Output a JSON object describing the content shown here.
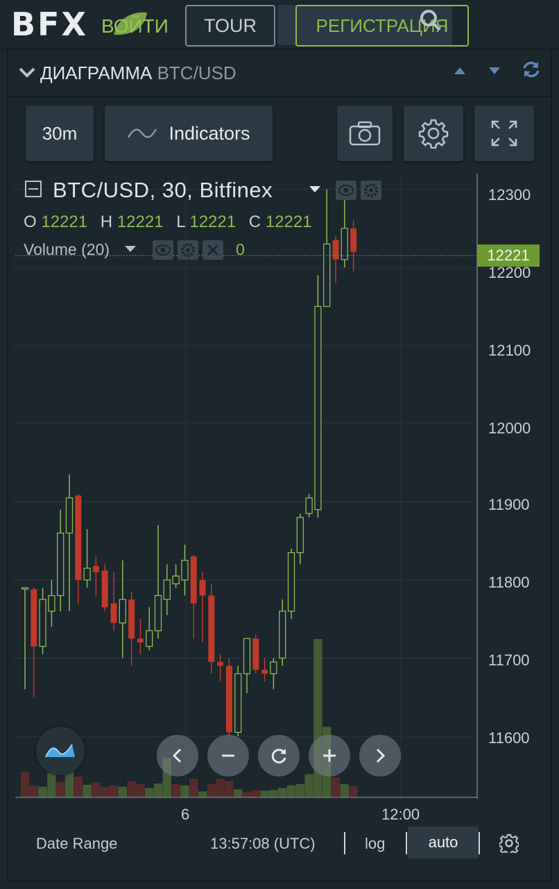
{
  "header": {
    "logo": "BFX",
    "login_label": "ВОЙТИ",
    "tour_label": "TOUR",
    "register_label": "РЕГИСТРАЦИЯ"
  },
  "panel": {
    "title": "ДИАГРАММА",
    "pair": "BTC/USD"
  },
  "toolbar": {
    "interval": "30m",
    "indicators_label": "Indicators"
  },
  "legend": {
    "title": "BTC/USD, 30, Bitfinex",
    "o_label": "O",
    "o_value": "12221",
    "h_label": "H",
    "h_value": "12221",
    "l_label": "L",
    "l_value": "12221",
    "c_label": "C",
    "c_value": "12221",
    "volume_label": "Volume (20)",
    "volume_value": "0"
  },
  "price_axis": {
    "labels": [
      "12300",
      "12200",
      "12100",
      "12000",
      "11900",
      "11800",
      "11700",
      "11600"
    ],
    "current_price": "12221"
  },
  "time_axis": {
    "labels": [
      "6",
      "12:00"
    ]
  },
  "footer": {
    "date_range_label": "Date Range",
    "clock": "13:57:08 (UTC)",
    "log_label": "log",
    "auto_label": "auto"
  },
  "colors": {
    "up": "#8dbc52",
    "down": "#c0392b",
    "background": "#1b262d",
    "price_tag": "#6b9b2f"
  },
  "chart_data": {
    "type": "candlestick",
    "ylim": [
      11520,
      12320
    ],
    "candles": [
      {
        "o": 11790,
        "h": 11790,
        "l": 11660,
        "c": 11790
      },
      {
        "o": 11788,
        "h": 11790,
        "l": 11650,
        "c": 11715
      },
      {
        "o": 11715,
        "h": 11790,
        "l": 11705,
        "c": 11775
      },
      {
        "o": 11760,
        "h": 11800,
        "l": 11740,
        "c": 11780
      },
      {
        "o": 11780,
        "h": 11890,
        "l": 11760,
        "c": 11860
      },
      {
        "o": 11860,
        "h": 11935,
        "l": 11760,
        "c": 11905
      },
      {
        "o": 11908,
        "h": 11910,
        "l": 11770,
        "c": 11800
      },
      {
        "o": 11800,
        "h": 11865,
        "l": 11790,
        "c": 11815
      },
      {
        "o": 11818,
        "h": 11830,
        "l": 11780,
        "c": 11810
      },
      {
        "o": 11812,
        "h": 11820,
        "l": 11760,
        "c": 11765
      },
      {
        "o": 11770,
        "h": 11810,
        "l": 11735,
        "c": 11745
      },
      {
        "o": 11745,
        "h": 11825,
        "l": 11700,
        "c": 11775
      },
      {
        "o": 11775,
        "h": 11785,
        "l": 11690,
        "c": 11725
      },
      {
        "o": 11725,
        "h": 11750,
        "l": 11705,
        "c": 11720
      },
      {
        "o": 11715,
        "h": 11765,
        "l": 11710,
        "c": 11735
      },
      {
        "o": 11735,
        "h": 11870,
        "l": 11725,
        "c": 11780
      },
      {
        "o": 11775,
        "h": 11820,
        "l": 11755,
        "c": 11800
      },
      {
        "o": 11795,
        "h": 11820,
        "l": 11790,
        "c": 11805
      },
      {
        "o": 11800,
        "h": 11845,
        "l": 11780,
        "c": 11825
      },
      {
        "o": 11830,
        "h": 11832,
        "l": 11725,
        "c": 11770
      },
      {
        "o": 11800,
        "h": 11810,
        "l": 11720,
        "c": 11780
      },
      {
        "o": 11780,
        "h": 11795,
        "l": 11680,
        "c": 11695
      },
      {
        "o": 11695,
        "h": 11705,
        "l": 11670,
        "c": 11690
      },
      {
        "o": 11690,
        "h": 11700,
        "l": 11600,
        "c": 11605
      },
      {
        "o": 11605,
        "h": 11690,
        "l": 11600,
        "c": 11680
      },
      {
        "o": 11680,
        "h": 11725,
        "l": 11655,
        "c": 11725
      },
      {
        "o": 11725,
        "h": 11730,
        "l": 11680,
        "c": 11685
      },
      {
        "o": 11685,
        "h": 11700,
        "l": 11670,
        "c": 11680
      },
      {
        "o": 11680,
        "h": 11700,
        "l": 11660,
        "c": 11695
      },
      {
        "o": 11700,
        "h": 11775,
        "l": 11690,
        "c": 11760
      },
      {
        "o": 11760,
        "h": 11840,
        "l": 11750,
        "c": 11835
      },
      {
        "o": 11835,
        "h": 11885,
        "l": 11820,
        "c": 11880
      },
      {
        "o": 11885,
        "h": 11910,
        "l": 11880,
        "c": 11905
      },
      {
        "o": 11890,
        "h": 12190,
        "l": 11880,
        "c": 12150
      },
      {
        "o": 12150,
        "h": 12300,
        "l": 12150,
        "c": 12230
      },
      {
        "o": 12235,
        "h": 12240,
        "l": 12180,
        "c": 12210
      },
      {
        "o": 12210,
        "h": 12290,
        "l": 12200,
        "c": 12250
      },
      {
        "o": 12250,
        "h": 12260,
        "l": 12195,
        "c": 12220
      }
    ],
    "volume": [
      {
        "v": 0.39,
        "d": 1
      },
      {
        "v": 0.18,
        "d": 1
      },
      {
        "v": 0.16,
        "d": 0
      },
      {
        "v": 0.37,
        "d": 0
      },
      {
        "v": 0.23,
        "d": 1
      },
      {
        "v": 0.49,
        "d": 0
      },
      {
        "v": 0.31,
        "d": 1
      },
      {
        "v": 0.19,
        "d": 0
      },
      {
        "v": 0.23,
        "d": 1
      },
      {
        "v": 0.16,
        "d": 1
      },
      {
        "v": 0.18,
        "d": 1
      },
      {
        "v": 0.16,
        "d": 0
      },
      {
        "v": 0.24,
        "d": 1
      },
      {
        "v": 0.2,
        "d": 1
      },
      {
        "v": 0.14,
        "d": 0
      },
      {
        "v": 0.21,
        "d": 0
      },
      {
        "v": 0.6,
        "d": 0
      },
      {
        "v": 0.2,
        "d": 1
      },
      {
        "v": 0.18,
        "d": 0
      },
      {
        "v": 0.28,
        "d": 1
      },
      {
        "v": 0.09,
        "d": 0
      },
      {
        "v": 0.2,
        "d": 1
      },
      {
        "v": 0.28,
        "d": 1
      },
      {
        "v": 0.25,
        "d": 1
      },
      {
        "v": 0.12,
        "d": 0
      },
      {
        "v": 0.08,
        "d": 1
      },
      {
        "v": 0.11,
        "d": 1
      },
      {
        "v": 0.1,
        "d": 0
      },
      {
        "v": 0.11,
        "d": 0
      },
      {
        "v": 0.14,
        "d": 0
      },
      {
        "v": 0.18,
        "d": 0
      },
      {
        "v": 0.2,
        "d": 0
      },
      {
        "v": 0.35,
        "d": 0
      },
      {
        "v": 2.4,
        "d": 0
      },
      {
        "v": 1.07,
        "d": 0
      },
      {
        "v": 0.3,
        "d": 1
      },
      {
        "v": 0.2,
        "d": 0
      },
      {
        "v": 0.17,
        "d": 1
      }
    ]
  }
}
